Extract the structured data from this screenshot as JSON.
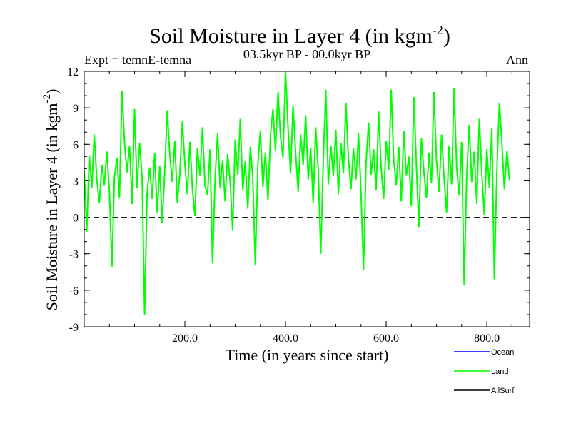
{
  "chart_data": {
    "type": "line",
    "title": "Soil Moisture in Layer 4 (in kgm",
    "title_superscript": "-2",
    "title_suffix": ")",
    "subtitle": "03.5kyr BP - 00.0kyr BP",
    "left_note": "Expt = temnE-temna",
    "right_note": "Ann",
    "xlabel": "Time (in years since start)",
    "ylabel": "Soil Moisture in Layer 4 (in kgm",
    "ylabel_superscript": "-2",
    "ylabel_suffix": ")",
    "xlim": [
      0,
      885
    ],
    "ylim": [
      -9,
      12
    ],
    "x_ticks": [
      {
        "value": 200,
        "label": "200.0"
      },
      {
        "value": 400,
        "label": "400.0"
      },
      {
        "value": 600,
        "label": "600.0"
      },
      {
        "value": 800,
        "label": "800.0"
      }
    ],
    "y_ticks": [
      {
        "value": -9,
        "label": "-9"
      },
      {
        "value": -6,
        "label": "-6"
      },
      {
        "value": -3,
        "label": "-3"
      },
      {
        "value": 0,
        "label": "0"
      },
      {
        "value": 3,
        "label": "3"
      },
      {
        "value": 6,
        "label": "6"
      },
      {
        "value": 9,
        "label": "9"
      },
      {
        "value": 12,
        "label": "12"
      }
    ],
    "reference_line": {
      "y": 0,
      "style": "dashed"
    },
    "legend": [
      {
        "name": "Ocean",
        "color": "#0000ff"
      },
      {
        "name": "Land",
        "color": "#00ff00"
      },
      {
        "name": "AllSurf",
        "color": "#000000"
      }
    ],
    "series": [
      {
        "name": "Land",
        "color": "#00ff00",
        "x_start": 0,
        "x_step": 5,
        "values": [
          3.8,
          -1.2,
          5.1,
          2.4,
          6.8,
          3.1,
          1.2,
          4.3,
          2.6,
          5.4,
          2.1,
          -4.1,
          3.3,
          4.9,
          1.6,
          10.4,
          6.2,
          3.7,
          5.9,
          1.1,
          8.9,
          2.4,
          6.1,
          3.3,
          -8.0,
          2.0,
          4.1,
          1.5,
          5.3,
          0.4,
          4.2,
          -0.5,
          3.8,
          8.8,
          5.1,
          2.9,
          6.3,
          1.2,
          3.6,
          7.9,
          4.4,
          1.9,
          6.2,
          2.3,
          0.1,
          5.7,
          3.4,
          7.4,
          2.6,
          1.8,
          5.6,
          -3.8,
          3.1,
          6.9,
          2.4,
          4.7,
          1.3,
          5.2,
          2.9,
          -1.1,
          6.4,
          3.5,
          8.1,
          2.2,
          4.6,
          0.7,
          5.8,
          3.2,
          -3.9,
          4.4,
          7.1,
          2.5,
          5.3,
          1.4,
          6.7,
          8.9,
          5.5,
          10.3,
          6.6,
          4.9,
          12.0,
          7.3,
          3.6,
          9.2,
          5.4,
          2.1,
          6.8,
          4.3,
          8.4,
          3.1,
          5.7,
          1.2,
          7.4,
          3.8,
          -3.0,
          4.6,
          10.5,
          2.7,
          5.9,
          3.4,
          7.2,
          1.9,
          6.1,
          3.6,
          9.4,
          4.8,
          2.3,
          5.7,
          3.1,
          6.9,
          2.0,
          -4.3,
          4.4,
          7.8,
          3.5,
          5.6,
          2.2,
          8.7,
          4.1,
          1.5,
          6.3,
          3.9,
          10.5,
          4.7,
          2.6,
          5.8,
          1.3,
          7.1,
          3.4,
          5.0,
          0.9,
          9.9,
          4.2,
          -0.8,
          6.5,
          3.7,
          1.6,
          5.3,
          2.8,
          10.3,
          4.6,
          2.1,
          6.8,
          3.3,
          0.4,
          5.9,
          2.7,
          10.6,
          4.1,
          1.8,
          6.2,
          -5.6,
          3.5,
          7.6,
          2.9,
          5.4,
          1.1,
          8.1,
          3.7,
          0.2,
          5.6,
          2.4,
          7.3,
          -5.1,
          4.0,
          9.4,
          6.1,
          2.3,
          5.5,
          3.0
        ]
      }
    ]
  }
}
